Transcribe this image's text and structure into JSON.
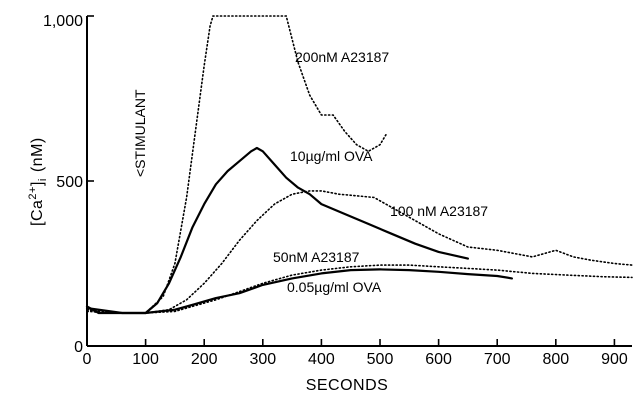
{
  "chart_data": {
    "type": "line",
    "title": "",
    "xlabel": "SECONDS",
    "ylabel_main": "[Ca",
    "ylabel_sup": "2+",
    "ylabel_close": "]",
    "ylabel_sub": "i",
    "ylabel_unit": "(nM)",
    "xlim": [
      0,
      930
    ],
    "ylim": [
      0,
      1000
    ],
    "x_ticks": [
      0,
      100,
      200,
      300,
      400,
      500,
      600,
      700,
      800,
      900
    ],
    "y_ticks": [
      0,
      500,
      1000
    ],
    "x_tick_labels": [
      "0",
      "100",
      "200",
      "300",
      "400",
      "500",
      "600",
      "700",
      "800",
      "900"
    ],
    "y_tick_labels": [
      "0",
      "500",
      "1,000"
    ],
    "annotation": "<STIMULANT",
    "series": [
      {
        "name": "200nM A23187",
        "style": "dotted",
        "x": [
          0,
          20,
          60,
          100,
          130,
          150,
          170,
          185,
          200,
          210,
          215,
          340,
          360,
          380,
          400,
          420,
          440,
          460,
          480,
          500,
          510
        ],
        "y": [
          110,
          100,
          100,
          100,
          150,
          250,
          450,
          650,
          850,
          970,
          1000,
          1000,
          860,
          760,
          700,
          700,
          650,
          610,
          590,
          610,
          640
        ]
      },
      {
        "name": "10µg/ml OVA",
        "style": "solid",
        "x": [
          0,
          20,
          60,
          100,
          120,
          140,
          160,
          180,
          200,
          220,
          240,
          260,
          280,
          290,
          300,
          320,
          340,
          360,
          380,
          400,
          440,
          480,
          520,
          560,
          600,
          650
        ],
        "y": [
          120,
          100,
          100,
          100,
          130,
          190,
          270,
          360,
          430,
          490,
          530,
          560,
          590,
          600,
          590,
          550,
          510,
          480,
          460,
          430,
          400,
          370,
          340,
          310,
          285,
          265
        ]
      },
      {
        "name": "100 nM A23187",
        "style": "dotted",
        "x": [
          0,
          60,
          100,
          140,
          170,
          200,
          230,
          260,
          290,
          320,
          350,
          380,
          400,
          430,
          460,
          490,
          520,
          560,
          600,
          650,
          700,
          760,
          800,
          830,
          860,
          900,
          930
        ],
        "y": [
          110,
          100,
          100,
          110,
          140,
          190,
          250,
          320,
          380,
          430,
          460,
          470,
          470,
          460,
          455,
          450,
          420,
          380,
          340,
          300,
          290,
          270,
          290,
          270,
          260,
          250,
          245
        ]
      },
      {
        "name": "50nM A23187",
        "style": "dotted",
        "x": [
          0,
          60,
          100,
          150,
          180,
          220,
          260,
          300,
          350,
          400,
          450,
          500,
          550,
          600,
          650,
          700,
          760,
          820,
          880,
          930
        ],
        "y": [
          105,
          100,
          100,
          105,
          120,
          140,
          165,
          190,
          215,
          230,
          240,
          245,
          245,
          240,
          235,
          230,
          220,
          215,
          210,
          208
        ]
      },
      {
        "name": "0.05µg/ml OVA",
        "style": "solid",
        "x": [
          0,
          60,
          100,
          150,
          180,
          220,
          260,
          300,
          350,
          400,
          450,
          500,
          550,
          600,
          650,
          700,
          725
        ],
        "y": [
          115,
          100,
          100,
          110,
          125,
          145,
          160,
          185,
          205,
          220,
          230,
          232,
          230,
          225,
          218,
          212,
          205
        ]
      }
    ]
  }
}
